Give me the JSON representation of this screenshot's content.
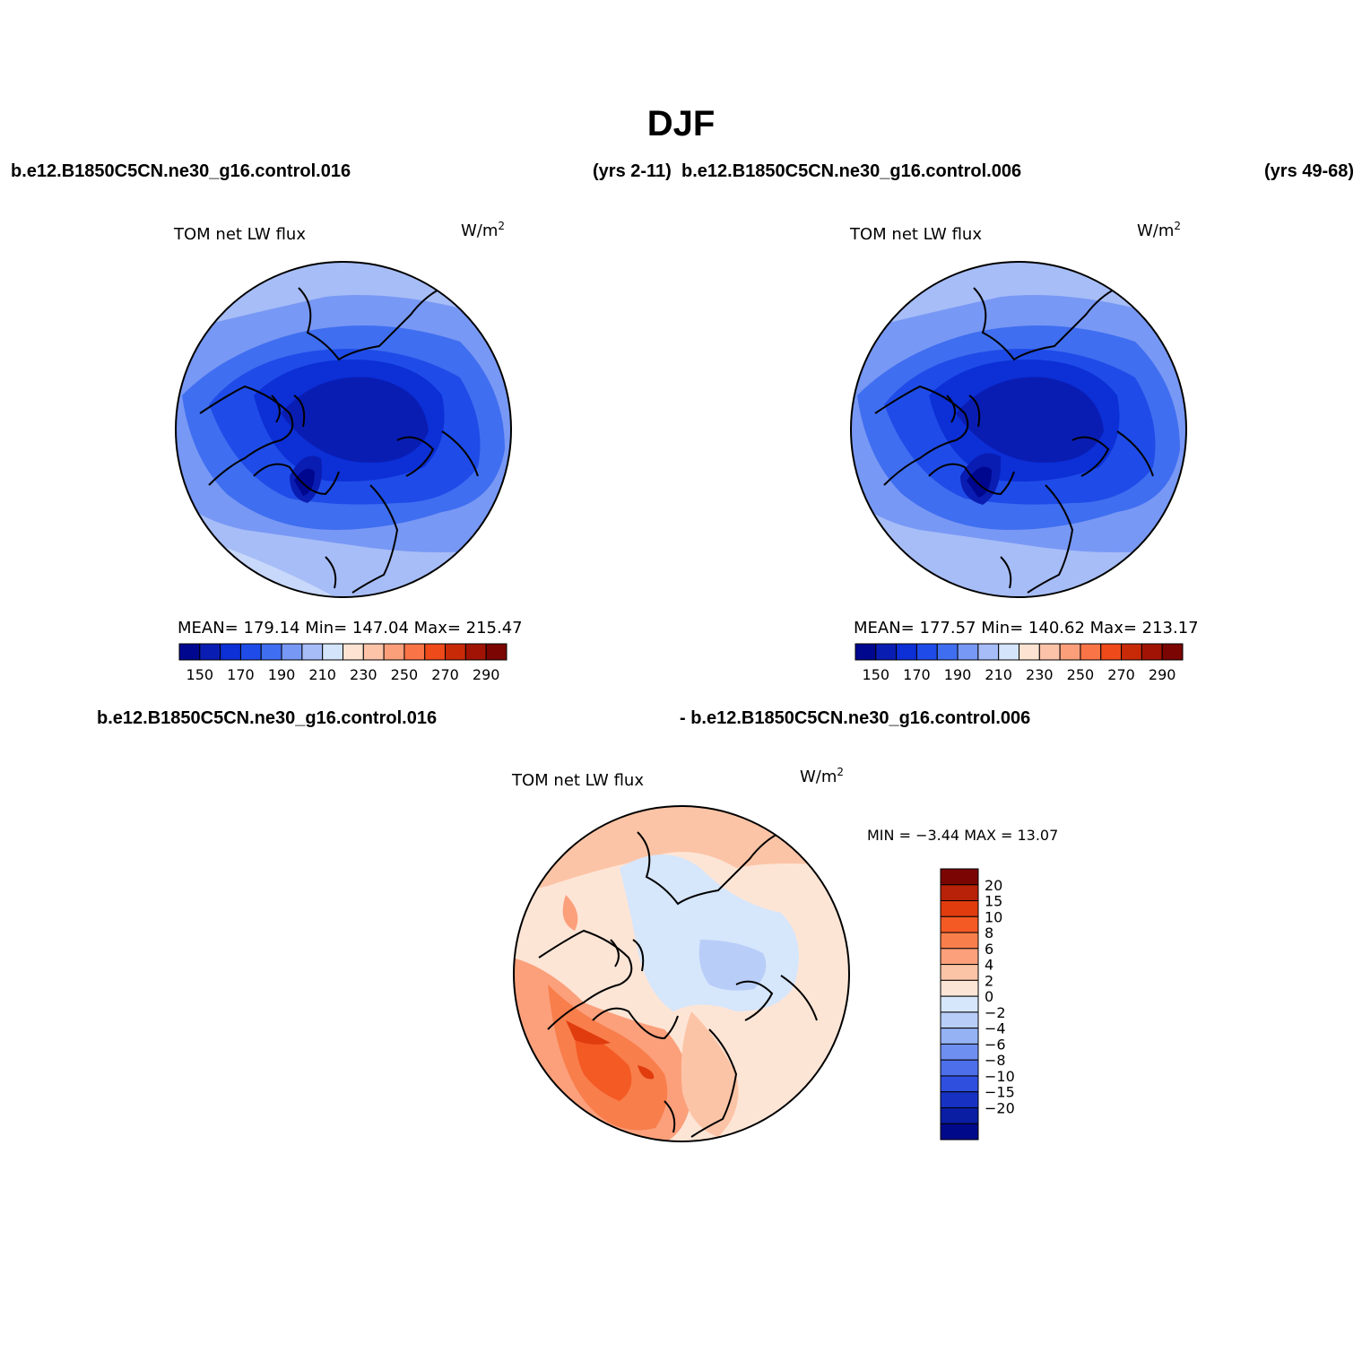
{
  "title": "DJF",
  "header": {
    "case_left": "b.e12.B1850C5CN.ne30_g16.control.016",
    "years_left": "(yrs 2-11)",
    "case_right": "b.e12.B1850C5CN.ne30_g16.control.006",
    "years_right": "(yrs 49-68)"
  },
  "panels": [
    {
      "title": "TOM  net  LW  flux",
      "unit_base": "W/m",
      "unit_exp": "2",
      "stats": "MEAN=  179.14    Min=  147.04    Max=  215.47"
    },
    {
      "title": "TOM  net  LW  flux",
      "unit_base": "W/m",
      "unit_exp": "2",
      "stats": "MEAN=  177.57    Min=  140.62    Max=  213.17"
    }
  ],
  "abs_colorbar": {
    "colors": [
      "#00078f",
      "#0a1db3",
      "#0c2fd6",
      "#1f4ce8",
      "#3f6ef0",
      "#7898f5",
      "#a7bdf7",
      "#d4e4fb",
      "#fde3d2",
      "#fcc3a8",
      "#fb9f7b",
      "#f97447",
      "#ee4a1a",
      "#c82a08",
      "#a11405",
      "#7a0502"
    ],
    "labels": [
      "150",
      "170",
      "190",
      "210",
      "230",
      "250",
      "270",
      "290"
    ]
  },
  "diff": {
    "case_left": "b.e12.B1850C5CN.ne30_g16.control.016",
    "case_right": "- b.e12.B1850C5CN.ne30_g16.control.006",
    "title": "TOM  net  LW  flux",
    "unit_base": "W/m",
    "unit_exp": "2",
    "stats": "MIN =   −3.44  MAX =   13.07",
    "colorbar": {
      "colors": [
        "#7a0502",
        "#b82208",
        "#e03c0e",
        "#f45a24",
        "#f87e4c",
        "#fba07b",
        "#fcc4a6",
        "#fde5d6",
        "#d6e6fb",
        "#b8cdf8",
        "#95b2f5",
        "#6f8ff0",
        "#4d6fea",
        "#2f4fde",
        "#1732c3",
        "#0a1ea3",
        "#00098a"
      ],
      "labels": [
        "20",
        "15",
        "10",
        "8",
        "6",
        "4",
        "2",
        "0",
        "−2",
        "−4",
        "−6",
        "−8",
        "−10",
        "−15",
        "−20"
      ]
    }
  }
}
